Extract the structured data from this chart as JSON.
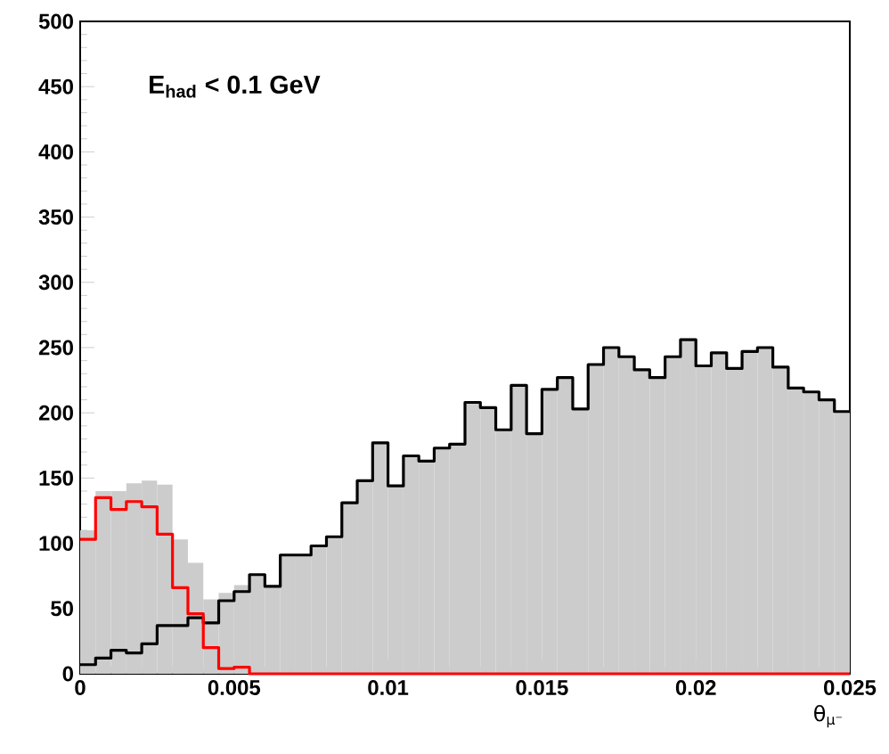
{
  "chart_data": {
    "type": "histogram",
    "xlabel": "θ$_{μ⁻}$",
    "annotations": [
      "E$_{had}$ < 0.1 GeV"
    ],
    "bins": [
      0,
      0.0005,
      0.001,
      0.0015,
      0.002,
      0.0025,
      0.003,
      0.0035,
      0.004,
      0.0045,
      0.005,
      0.0055,
      0.006,
      0.0065,
      0.007,
      0.0075,
      0.008,
      0.0085,
      0.009,
      0.0095,
      0.01,
      0.0105,
      0.011,
      0.0115,
      0.012,
      0.0125,
      0.013,
      0.0135,
      0.014,
      0.0145,
      0.015,
      0.0155,
      0.016,
      0.0165,
      0.017,
      0.0175,
      0.018,
      0.0185,
      0.019,
      0.0195,
      0.02,
      0.0205,
      0.021,
      0.0215,
      0.022,
      0.0225,
      0.023,
      0.0235,
      0.024,
      0.0245,
      0.025
    ],
    "series": [
      {
        "color": "#cccccc",
        "values": [
          110,
          140,
          140,
          146,
          148,
          145,
          103,
          85,
          57,
          62,
          68,
          76,
          67,
          91,
          91,
          98,
          105,
          131,
          148,
          177,
          144,
          167,
          163,
          173,
          176,
          208,
          204,
          187,
          221,
          184,
          218,
          227,
          203,
          237,
          250,
          243,
          233,
          227,
          243,
          256,
          236,
          246,
          234,
          247,
          250,
          235,
          219,
          216,
          210,
          201
        ]
      },
      {
        "type": "step",
        "color": "#000000",
        "x": [
          0,
          0.0005,
          0.001,
          0.0015,
          0.002,
          0.0025,
          0.003,
          0.0035,
          0.004,
          0.0045,
          0.005,
          0.0055,
          0.006,
          0.0065,
          0.007,
          0.0075,
          0.008,
          0.0085,
          0.009,
          0.0095,
          0.01,
          0.0105,
          0.011,
          0.0115,
          0.012,
          0.0125,
          0.013,
          0.0135,
          0.014,
          0.0145,
          0.015,
          0.0155,
          0.016,
          0.0165,
          0.017,
          0.0175,
          0.018,
          0.0185,
          0.019,
          0.0195,
          0.02,
          0.0205,
          0.021,
          0.0215,
          0.022,
          0.0225,
          0.023,
          0.0235,
          0.024,
          0.0245,
          0.025
        ],
        "values": [
          7,
          12,
          18,
          16,
          23,
          37,
          37,
          43,
          39,
          56,
          63,
          76,
          67,
          91,
          91,
          98,
          105,
          131,
          148,
          177,
          144,
          167,
          163,
          173,
          176,
          208,
          204,
          187,
          221,
          184,
          218,
          227,
          203,
          237,
          250,
          243,
          233,
          227,
          243,
          256,
          236,
          246,
          234,
          247,
          250,
          235,
          219,
          216,
          210,
          201,
          201
        ]
      },
      {
        "type": "step",
        "color": "#ff0000",
        "x": [
          0,
          0.0005,
          0.001,
          0.0015,
          0.002,
          0.0025,
          0.003,
          0.0035,
          0.004,
          0.0045,
          0.005,
          0.0055,
          0.006,
          0.0065,
          0.007,
          0.0075,
          0.008,
          0.0085,
          0.009,
          0.0095,
          0.01,
          0.0105,
          0.011,
          0.0115,
          0.012,
          0.0125,
          0.013,
          0.0135,
          0.014,
          0.0145,
          0.015,
          0.0155,
          0.016,
          0.0165,
          0.017,
          0.0175,
          0.018,
          0.0185,
          0.019,
          0.0195,
          0.02,
          0.0205,
          0.021,
          0.0215,
          0.022,
          0.0225,
          0.023,
          0.0235,
          0.024,
          0.0245,
          0.025
        ],
        "values": [
          103,
          135,
          126,
          132,
          128,
          107,
          66,
          46,
          20,
          4,
          5,
          0,
          0,
          0,
          0,
          0,
          0,
          0,
          0,
          0,
          0,
          0,
          0,
          0,
          0,
          0,
          0,
          0,
          0,
          0,
          0,
          0,
          0,
          0,
          0,
          0,
          0,
          0,
          0,
          0,
          0,
          0,
          0,
          0,
          0,
          0,
          0,
          0,
          0,
          0,
          0
        ]
      }
    ],
    "xlim": [
      0,
      0.025
    ],
    "ylim": [
      0,
      500
    ],
    "xticks": [
      0,
      0.005,
      0.01,
      0.015,
      0.02,
      0.025
    ],
    "yticks": [
      0,
      50,
      100,
      150,
      200,
      250,
      300,
      350,
      400,
      450,
      500
    ]
  }
}
